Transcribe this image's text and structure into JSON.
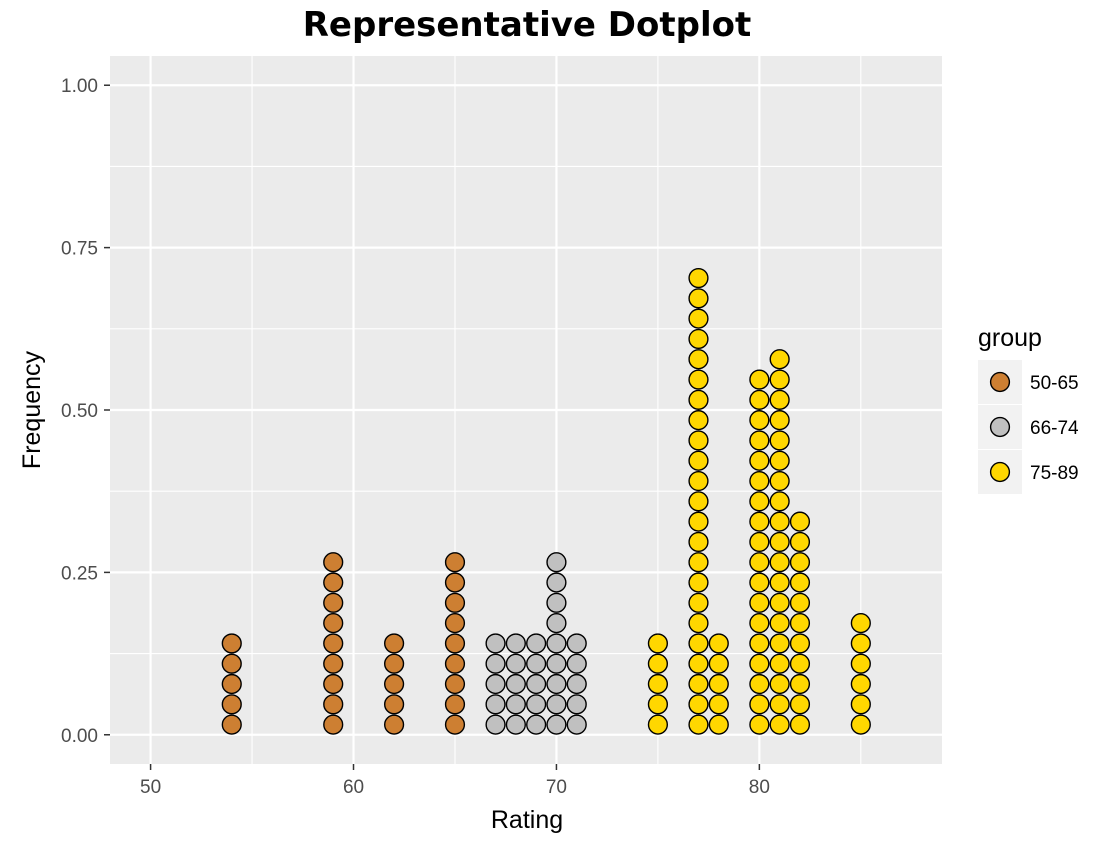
{
  "chart_data": {
    "type": "scatter",
    "subtype": "dotplot",
    "title": "Representative Dotplot",
    "xlabel": "Rating",
    "ylabel": "Frequency",
    "xlim": [
      48,
      89
    ],
    "ylim": [
      -0.045,
      1.045
    ],
    "x_ticks": [
      50,
      60,
      70,
      80
    ],
    "y_ticks": [
      0.0,
      0.25,
      0.5,
      0.75,
      1.0
    ],
    "x_tick_labels": [
      "50",
      "60",
      "70",
      "80"
    ],
    "y_tick_labels": [
      "0.00",
      "0.25",
      "0.50",
      "0.75",
      "1.00"
    ],
    "grid": true,
    "legend": {
      "title": "group",
      "placement": "right"
    },
    "series": [
      {
        "name": "50-65",
        "color": "#CD7F32",
        "points": [
          {
            "x": 54,
            "count": 5
          },
          {
            "x": 59,
            "count": 9
          },
          {
            "x": 62,
            "count": 5
          },
          {
            "x": 65,
            "count": 9
          }
        ]
      },
      {
        "name": "66-74",
        "color": "#C0C0C0",
        "points": [
          {
            "x": 67,
            "count": 5
          },
          {
            "x": 68,
            "count": 5
          },
          {
            "x": 69,
            "count": 5
          },
          {
            "x": 70,
            "count": 9
          },
          {
            "x": 71,
            "count": 5
          }
        ]
      },
      {
        "name": "75-89",
        "color": "#FFD700",
        "points": [
          {
            "x": 75,
            "count": 5
          },
          {
            "x": 77,
            "count": 23
          },
          {
            "x": 78,
            "count": 5
          },
          {
            "x": 80,
            "count": 18
          },
          {
            "x": 81,
            "count": 19
          },
          {
            "x": 82,
            "count": 11
          },
          {
            "x": 85,
            "count": 6
          }
        ]
      }
    ]
  }
}
